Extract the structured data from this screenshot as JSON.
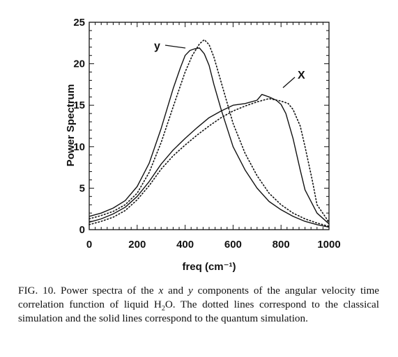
{
  "chart_data": {
    "type": "line",
    "title": "",
    "xlabel": "freq (cm⁻¹)",
    "ylabel": "Power Spectrum",
    "xlim": [
      0,
      1000
    ],
    "ylim": [
      0,
      25
    ],
    "x_ticks": [
      "0",
      "200",
      "400",
      "600",
      "800",
      "1000"
    ],
    "y_ticks": [
      "0",
      "5",
      "10",
      "15",
      "20",
      "25"
    ],
    "grid": false,
    "series_tags": {
      "y": "y",
      "x": "X"
    },
    "series": [
      {
        "component": "y",
        "style": "solid",
        "x": [
          0,
          50,
          100,
          150,
          200,
          250,
          300,
          350,
          380,
          400,
          420,
          440,
          460,
          480,
          500,
          520,
          550,
          600,
          650,
          700,
          750,
          800,
          850,
          900,
          950,
          1000
        ],
        "y": [
          1.6,
          2.0,
          2.6,
          3.5,
          5.2,
          8.0,
          12.2,
          17.0,
          19.5,
          21.0,
          21.6,
          21.8,
          21.9,
          21.2,
          19.8,
          17.5,
          14.5,
          10.0,
          7.2,
          5.0,
          3.4,
          2.4,
          1.6,
          1.0,
          0.6,
          0.3
        ]
      },
      {
        "component": "y",
        "style": "dotted",
        "x": [
          0,
          50,
          100,
          150,
          200,
          250,
          300,
          350,
          400,
          430,
          460,
          480,
          500,
          520,
          550,
          600,
          650,
          700,
          750,
          800,
          850,
          900,
          950,
          1000
        ],
        "y": [
          1.3,
          1.7,
          2.2,
          3.0,
          4.4,
          6.9,
          10.5,
          14.8,
          19.0,
          21.0,
          22.4,
          22.9,
          22.3,
          20.8,
          17.8,
          12.8,
          9.2,
          6.5,
          4.4,
          3.0,
          2.0,
          1.3,
          0.8,
          0.4
        ]
      },
      {
        "component": "x",
        "style": "solid",
        "x": [
          0,
          50,
          100,
          150,
          200,
          250,
          300,
          350,
          400,
          450,
          500,
          550,
          600,
          650,
          700,
          720,
          750,
          780,
          800,
          820,
          850,
          880,
          900,
          950,
          1000
        ],
        "y": [
          0.9,
          1.3,
          1.9,
          2.7,
          4.0,
          5.8,
          7.9,
          9.6,
          11.0,
          12.3,
          13.5,
          14.3,
          15.0,
          15.2,
          15.6,
          16.3,
          16.0,
          15.6,
          15.1,
          14.0,
          11.0,
          7.2,
          4.8,
          2.0,
          0.7
        ]
      },
      {
        "component": "x",
        "style": "dotted",
        "x": [
          0,
          50,
          100,
          150,
          200,
          250,
          300,
          350,
          400,
          450,
          500,
          550,
          600,
          650,
          700,
          750,
          800,
          830,
          850,
          880,
          900,
          930,
          950,
          1000
        ],
        "y": [
          0.6,
          1.0,
          1.5,
          2.3,
          3.6,
          5.3,
          7.3,
          8.9,
          10.2,
          11.4,
          12.5,
          13.5,
          14.3,
          14.9,
          15.4,
          15.8,
          15.5,
          15.2,
          14.5,
          12.5,
          10.0,
          6.0,
          3.0,
          0.9
        ]
      }
    ]
  },
  "caption": {
    "prefix": "FIG. 10. Power spectra of the ",
    "var_x": "x",
    "mid1": " and ",
    "var_y": "y",
    "mid2": " components of the angular velocity time correlation function of liquid H",
    "sub": "2",
    "suffix": "O. The dotted lines correspond to the classical simulation and the solid lines correspond to the quantum simulation."
  }
}
